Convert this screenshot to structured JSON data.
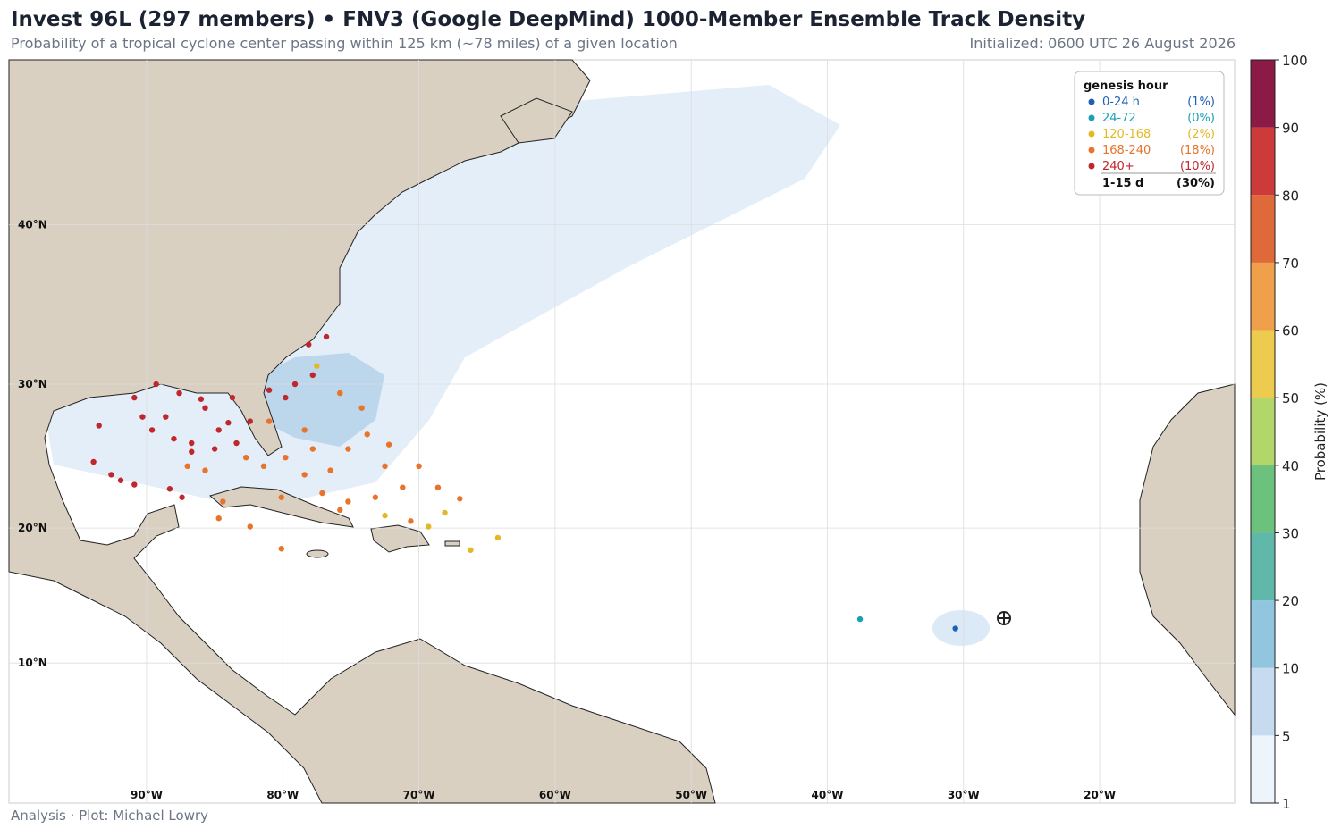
{
  "header": {
    "title": "Invest 96L (297 members)  •  FNV3 (Google DeepMind) 1000-Member Ensemble Track Density",
    "subtitle": "Probability of a tropical cyclone center passing within 125 km (~78 miles) of a given location",
    "initialized": "Initialized: 0600 UTC 26 August 2026"
  },
  "map": {
    "lat_labels": [
      {
        "value": 10,
        "label": "10°N"
      },
      {
        "value": 20,
        "label": "20°N"
      },
      {
        "value": 30,
        "label": "30°N"
      },
      {
        "value": 40,
        "label": "40°N"
      }
    ],
    "lon_labels": [
      {
        "value": -90,
        "label": "90°W"
      },
      {
        "value": -80,
        "label": "80°W"
      },
      {
        "value": -70,
        "label": "70°W"
      },
      {
        "value": -60,
        "label": "60°W"
      },
      {
        "value": -50,
        "label": "50°W"
      },
      {
        "value": -40,
        "label": "40°W"
      },
      {
        "value": -30,
        "label": "30°W"
      },
      {
        "value": -20,
        "label": "20°W"
      }
    ],
    "genesis_points": [
      [
        -93.5,
        27.2,
        4
      ],
      [
        -93.9,
        24.7,
        4
      ],
      [
        -91.9,
        23.4,
        4
      ],
      [
        -90.3,
        27.8,
        4
      ],
      [
        -88.6,
        27.8,
        4
      ],
      [
        -87.6,
        29.4,
        4
      ],
      [
        -86.7,
        26,
        4
      ],
      [
        -84.7,
        26.9,
        4
      ],
      [
        -83.7,
        29.1,
        4
      ],
      [
        -86,
        29,
        4
      ],
      [
        -81,
        29.6,
        4
      ],
      [
        -79.8,
        29.1,
        4
      ],
      [
        -77.8,
        30.6,
        4
      ],
      [
        -78.1,
        32.6,
        4
      ],
      [
        -76.8,
        33.1,
        4
      ],
      [
        -88.3,
        22.8,
        4
      ],
      [
        -90.9,
        23.1,
        4
      ],
      [
        -89.6,
        26.9,
        4
      ],
      [
        -88,
        26.3,
        4
      ],
      [
        -85,
        25.6,
        4
      ],
      [
        -82.4,
        27.5,
        4
      ],
      [
        -89.3,
        30,
        4
      ],
      [
        -90.9,
        29.1,
        4
      ],
      [
        -92.6,
        23.8,
        4
      ],
      [
        -86.7,
        25.4,
        4
      ],
      [
        -83.4,
        26,
        4
      ],
      [
        -79.1,
        30,
        4
      ],
      [
        -87.4,
        22.2,
        4
      ],
      [
        -85.7,
        28.4,
        4
      ],
      [
        -84,
        27.4,
        4
      ],
      [
        -81,
        27.5,
        3
      ],
      [
        -79.8,
        25,
        3
      ],
      [
        -78.4,
        23.8,
        3
      ],
      [
        -76.5,
        24.1,
        3
      ],
      [
        -75.2,
        25.6,
        3
      ],
      [
        -73.8,
        26.6,
        3
      ],
      [
        -72.5,
        24.4,
        3
      ],
      [
        -71.2,
        22.9,
        3
      ],
      [
        -70,
        24.4,
        3
      ],
      [
        -73.2,
        22.2,
        3
      ],
      [
        -75.2,
        21.9,
        3
      ],
      [
        -77.1,
        22.5,
        3
      ],
      [
        -80.1,
        22.2,
        3
      ],
      [
        -82.4,
        20.1,
        3
      ],
      [
        -80.1,
        18.5,
        3
      ],
      [
        -84.4,
        21.9,
        3
      ],
      [
        -84.7,
        20.7,
        3
      ],
      [
        -85.7,
        24.1,
        3
      ],
      [
        -87,
        24.4,
        3
      ],
      [
        -81.4,
        24.4,
        3
      ],
      [
        -78.4,
        26.9,
        3
      ],
      [
        -75.8,
        29.4,
        3
      ],
      [
        -74.2,
        28.4,
        3
      ],
      [
        -68.6,
        22.9,
        3
      ],
      [
        -67,
        22.1,
        3
      ],
      [
        -70.6,
        20.5,
        3
      ],
      [
        -75.8,
        21.3,
        3
      ],
      [
        -72.2,
        25.9,
        3
      ],
      [
        -77.8,
        25.6,
        3
      ],
      [
        -82.7,
        25,
        3
      ],
      [
        -72.5,
        20.9,
        2
      ],
      [
        -69.3,
        20.1,
        2
      ],
      [
        -68.1,
        21.1,
        2
      ],
      [
        -66.2,
        18.4,
        2
      ],
      [
        -64.2,
        19.3,
        2
      ],
      [
        -77.5,
        31.2,
        2
      ],
      [
        -37.6,
        13.3,
        1
      ],
      [
        -30.6,
        12.6,
        0
      ]
    ]
  },
  "legend": {
    "title": "genesis hour",
    "entries": [
      {
        "label": "0-24 h",
        "percent": "(1%)",
        "color": "#1f5fb4"
      },
      {
        "label": "24-72",
        "percent": "(0%)",
        "color": "#1a9fb5"
      },
      {
        "label": "120-168",
        "percent": "(2%)",
        "color": "#e3b825"
      },
      {
        "label": "168-240",
        "percent": "(18%)",
        "color": "#e8732a"
      },
      {
        "label": "240+",
        "percent": "(10%)",
        "color": "#c0272d"
      }
    ],
    "total": {
      "label": "1-15 d",
      "percent": "(30%)"
    }
  },
  "colorbar": {
    "label": "Probability (%)",
    "ticks": [
      1,
      5,
      10,
      20,
      30,
      40,
      50,
      60,
      70,
      80,
      90,
      100
    ],
    "colors": [
      "#eef4fb",
      "#c6dbef",
      "#92c5de",
      "#5fb8a9",
      "#6cc17d",
      "#b3d66a",
      "#eccb4f",
      "#f0a04b",
      "#e0693a",
      "#cc3a3a",
      "#8b1a46"
    ]
  },
  "footer": "Analysis · Plot: Michael Lowry"
}
